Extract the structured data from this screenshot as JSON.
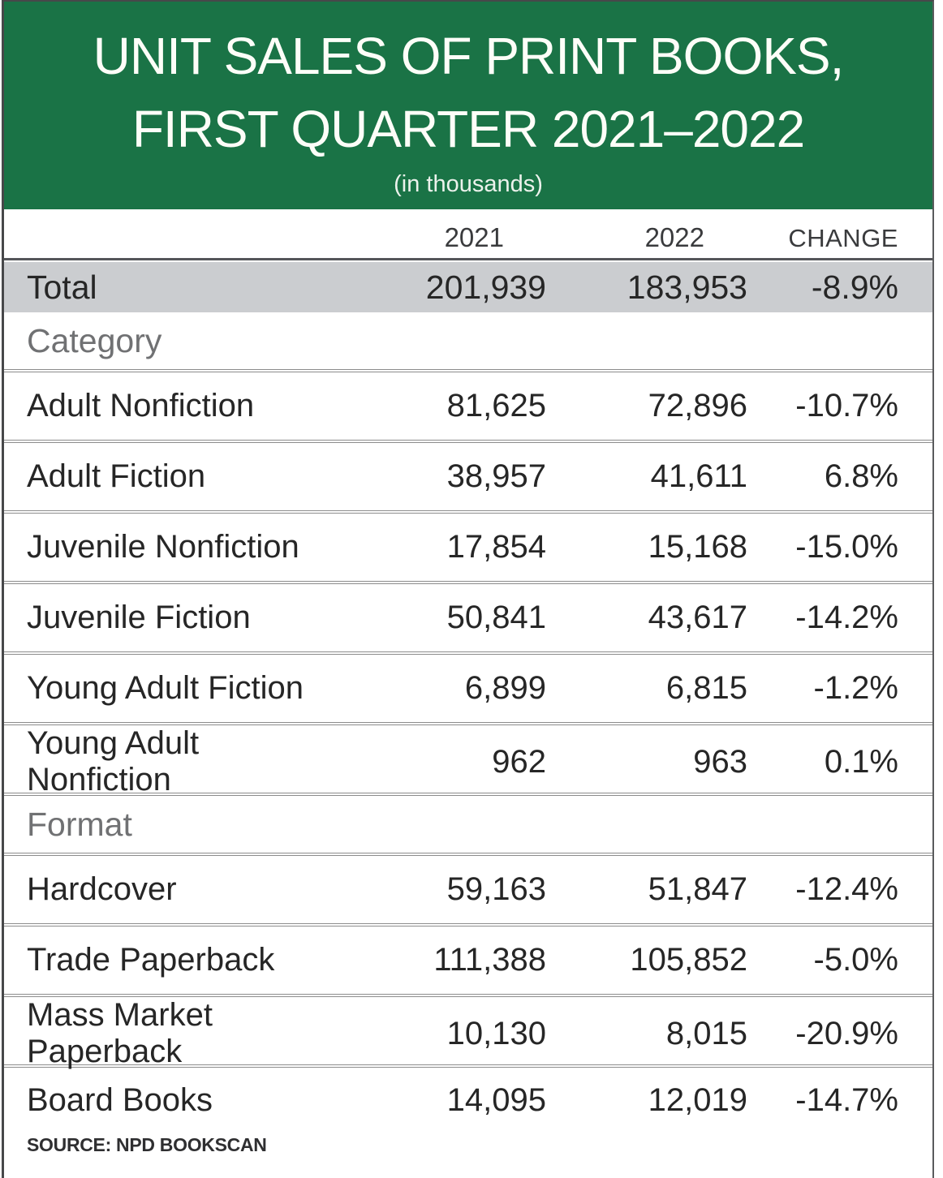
{
  "header": {
    "title_line1": "UNIT SALES OF PRINT BOOKS,",
    "title_line2": "FIRST QUARTER 2021–2022",
    "subtitle": "(in thousands)"
  },
  "colors": {
    "banner_green": "#1a7346",
    "total_row_gray": "#cbcdd0",
    "section_label_gray": "#707173",
    "rule_gray": "#8c8c8c",
    "text_dark": "#262626"
  },
  "table": {
    "columns": [
      "2021",
      "2022",
      "CHANGE"
    ],
    "total": {
      "label": "Total",
      "y2021": "201,939",
      "y2022": "183,953",
      "change": "-8.9%"
    },
    "section_category": "Category",
    "section_format": "Format",
    "rows": [
      {
        "label": "Adult Nonfiction",
        "y2021": "81,625",
        "y2022": "72,896",
        "change": "-10.7%"
      },
      {
        "label": "Adult Fiction",
        "y2021": "38,957",
        "y2022": "41,611",
        "change": "6.8%"
      },
      {
        "label": "Juvenile Nonfiction",
        "y2021": "17,854",
        "y2022": "15,168",
        "change": "-15.0%"
      },
      {
        "label": "Juvenile Fiction",
        "y2021": "50,841",
        "y2022": "43,617",
        "change": "-14.2%"
      },
      {
        "label": "Young Adult Fiction",
        "y2021": "6,899",
        "y2022": "6,815",
        "change": "-1.2%"
      },
      {
        "label": "Young Adult Nonfiction",
        "y2021": "962",
        "y2022": "963",
        "change": "0.1%"
      },
      {
        "label": "Hardcover",
        "y2021": "59,163",
        "y2022": "51,847",
        "change": "-12.4%"
      },
      {
        "label": "Trade Paperback",
        "y2021": "111,388",
        "y2022": "105,852",
        "change": "-5.0%"
      },
      {
        "label": "Mass Market Paperback",
        "y2021": "10,130",
        "y2022": "8,015",
        "change": "-20.9%"
      },
      {
        "label": "Board Books",
        "y2021": "14,095",
        "y2022": "12,019",
        "change": "-14.7%"
      }
    ]
  },
  "footer": {
    "source": "SOURCE: NPD BOOKSCAN"
  },
  "chart_data": {
    "type": "table",
    "title": "Unit Sales of Print Books, First Quarter 2021–2022",
    "unit": "thousands",
    "columns": [
      "2021",
      "2022",
      "Change"
    ],
    "groups": [
      {
        "name": "Total",
        "rows": [
          {
            "label": "Total",
            "y2021": 201939,
            "y2022": 183953,
            "change_pct": -8.9
          }
        ]
      },
      {
        "name": "Category",
        "rows": [
          {
            "label": "Adult Nonfiction",
            "y2021": 81625,
            "y2022": 72896,
            "change_pct": -10.7
          },
          {
            "label": "Adult Fiction",
            "y2021": 38957,
            "y2022": 41611,
            "change_pct": 6.8
          },
          {
            "label": "Juvenile Nonfiction",
            "y2021": 17854,
            "y2022": 15168,
            "change_pct": -15.0
          },
          {
            "label": "Juvenile Fiction",
            "y2021": 50841,
            "y2022": 43617,
            "change_pct": -14.2
          },
          {
            "label": "Young Adult Fiction",
            "y2021": 6899,
            "y2022": 6815,
            "change_pct": -1.2
          },
          {
            "label": "Young Adult Nonfiction",
            "y2021": 962,
            "y2022": 963,
            "change_pct": 0.1
          }
        ]
      },
      {
        "name": "Format",
        "rows": [
          {
            "label": "Hardcover",
            "y2021": 59163,
            "y2022": 51847,
            "change_pct": -12.4
          },
          {
            "label": "Trade Paperback",
            "y2021": 111388,
            "y2022": 105852,
            "change_pct": -5.0
          },
          {
            "label": "Mass Market Paperback",
            "y2021": 10130,
            "y2022": 8015,
            "change_pct": -20.9
          },
          {
            "label": "Board Books",
            "y2021": 14095,
            "y2022": 12019,
            "change_pct": -14.7
          }
        ]
      }
    ],
    "source": "NPD BookScan"
  }
}
